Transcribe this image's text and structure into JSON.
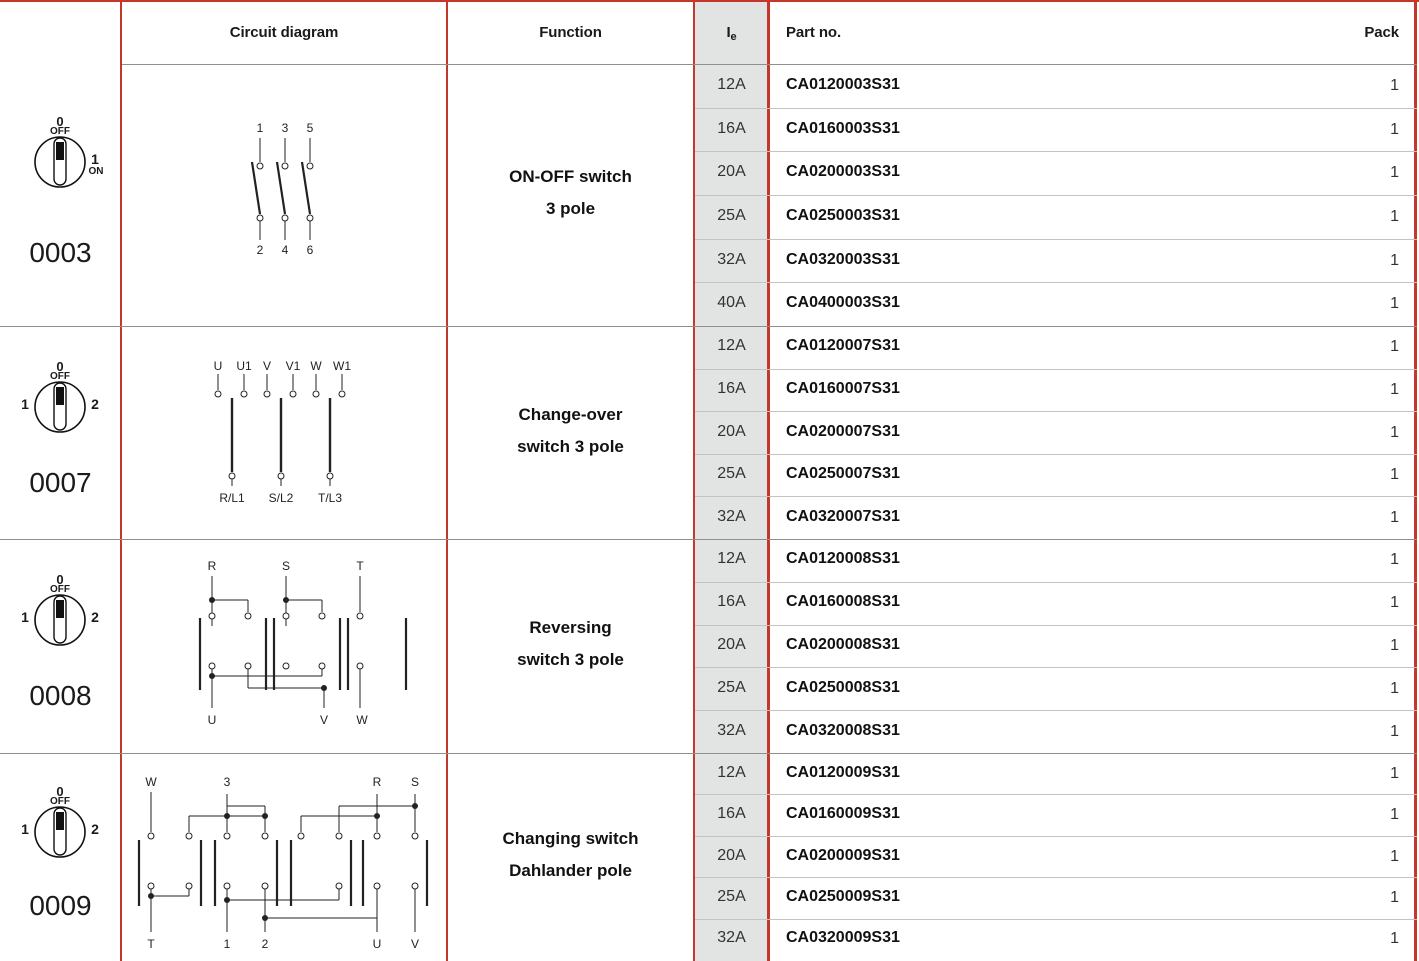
{
  "headers": {
    "circuit": "Circuit diagram",
    "function": "Function",
    "ie_main": "I",
    "ie_sub": "e",
    "partno": "Part no.",
    "pack": "Pack"
  },
  "groups": [
    {
      "code": "0003",
      "selector": {
        "top": "0",
        "top_sub": "OFF",
        "right": "1",
        "right_sub": "ON"
      },
      "function_line1": "ON-OFF switch",
      "function_line2": "3 pole",
      "diagram_labels": {
        "t1": "1",
        "t2": "3",
        "t3": "5",
        "b1": "2",
        "b2": "4",
        "b3": "6"
      },
      "rows": [
        {
          "rating": "12A",
          "part": "CA0120003S31",
          "pack": "1"
        },
        {
          "rating": "16A",
          "part": "CA0160003S31",
          "pack": "1"
        },
        {
          "rating": "20A",
          "part": "CA0200003S31",
          "pack": "1"
        },
        {
          "rating": "25A",
          "part": "CA0250003S31",
          "pack": "1"
        },
        {
          "rating": "32A",
          "part": "CA0320003S31",
          "pack": "1"
        },
        {
          "rating": "40A",
          "part": "CA0400003S31",
          "pack": "1"
        }
      ]
    },
    {
      "code": "0007",
      "selector": {
        "top": "0",
        "top_sub": "OFF",
        "left": "1",
        "right": "2"
      },
      "function_line1": "Change-over",
      "function_line2": "switch 3 pole",
      "diagram_labels": {
        "t1": "U",
        "t2": "U1",
        "t3": "V",
        "t4": "V1",
        "t5": "W",
        "t6": "W1",
        "b1": "R/L1",
        "b2": "S/L2",
        "b3": "T/L3"
      },
      "rows": [
        {
          "rating": "12A",
          "part": "CA0120007S31",
          "pack": "1"
        },
        {
          "rating": "16A",
          "part": "CA0160007S31",
          "pack": "1"
        },
        {
          "rating": "20A",
          "part": "CA0200007S31",
          "pack": "1"
        },
        {
          "rating": "25A",
          "part": "CA0250007S31",
          "pack": "1"
        },
        {
          "rating": "32A",
          "part": "CA0320007S31",
          "pack": "1"
        }
      ]
    },
    {
      "code": "0008",
      "selector": {
        "top": "0",
        "top_sub": "OFF",
        "left": "1",
        "right": "2"
      },
      "function_line1": "Reversing",
      "function_line2": "switch 3 pole",
      "diagram_labels": {
        "t1": "R",
        "t2": "S",
        "t3": "T",
        "b1": "U",
        "b2": "V",
        "b3": "W"
      },
      "rows": [
        {
          "rating": "12A",
          "part": "CA0120008S31",
          "pack": "1"
        },
        {
          "rating": "16A",
          "part": "CA0160008S31",
          "pack": "1"
        },
        {
          "rating": "20A",
          "part": "CA0200008S31",
          "pack": "1"
        },
        {
          "rating": "25A",
          "part": "CA0250008S31",
          "pack": "1"
        },
        {
          "rating": "32A",
          "part": "CA0320008S31",
          "pack": "1"
        }
      ]
    },
    {
      "code": "0009",
      "selector": {
        "top": "0",
        "top_sub": "OFF",
        "left": "1",
        "right": "2"
      },
      "function_line1": "Changing switch",
      "function_line2": "Dahlander pole",
      "diagram_labels": {
        "t1": "W",
        "t2": "3",
        "t3": "R",
        "t4": "S",
        "b1": "T",
        "b2": "1",
        "b3": "2",
        "b4": "U",
        "b5": "V"
      },
      "rows": [
        {
          "rating": "12A",
          "part": "CA0120009S31",
          "pack": "1"
        },
        {
          "rating": "16A",
          "part": "CA0160009S31",
          "pack": "1"
        },
        {
          "rating": "20A",
          "part": "CA0200009S31",
          "pack": "1"
        },
        {
          "rating": "25A",
          "part": "CA0250009S31",
          "pack": "1"
        },
        {
          "rating": "32A",
          "part": "CA0320009S31",
          "pack": "1"
        }
      ]
    }
  ]
}
